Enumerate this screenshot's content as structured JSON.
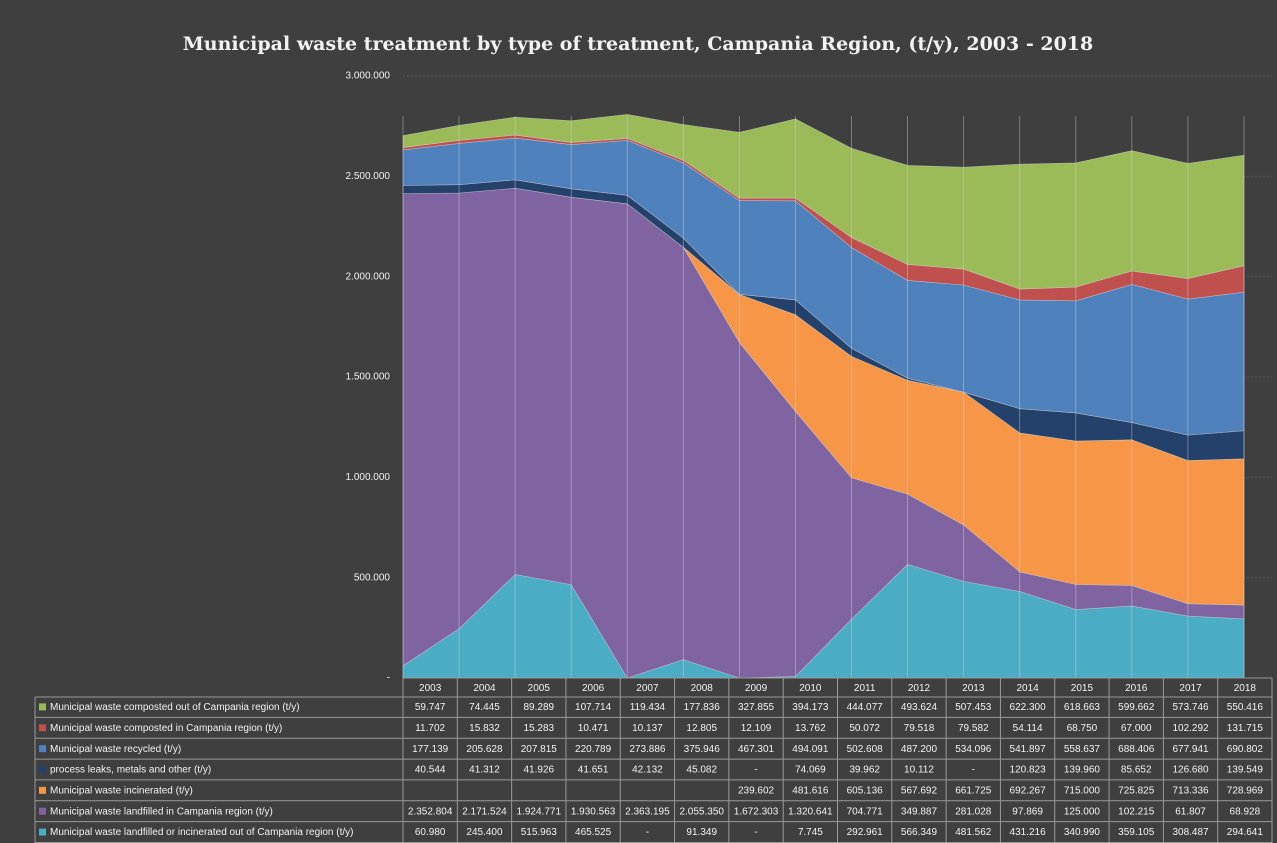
{
  "chart_data": {
    "type": "stacked_area",
    "title": "Municipal waste treatment by type of treatment, Campania Region, (t/y), 2003 - 2018",
    "categories": [
      "2003",
      "2004",
      "2005",
      "2006",
      "2007",
      "2008",
      "2009",
      "2010",
      "2011",
      "2012",
      "2013",
      "2014",
      "2015",
      "2016",
      "2017",
      "2018"
    ],
    "ylim": [
      0,
      3000000
    ],
    "yticks": [
      {
        "value": 0,
        "label": "-"
      },
      {
        "value": 500000,
        "label": "500.000"
      },
      {
        "value": 1000000,
        "label": "1.000.000"
      },
      {
        "value": 1500000,
        "label": "1.500.000"
      },
      {
        "value": 2000000,
        "label": "2.000.000"
      },
      {
        "value": 2500000,
        "label": "2.500.000"
      },
      {
        "value": 3000000,
        "label": "3.000.000"
      }
    ],
    "grid": true,
    "series": [
      {
        "name": "Municipal waste composted out of Campania region (t/y)",
        "color": "#9bbb59",
        "values": [
          59747,
          74445,
          89289,
          107714,
          119434,
          177836,
          327855,
          394173,
          444077,
          493624,
          507453,
          622300,
          618663,
          599662,
          573746,
          550416
        ],
        "value_labels": [
          "59.747",
          "74.445",
          "89.289",
          "107.714",
          "119.434",
          "177.836",
          "327.855",
          "394.173",
          "444.077",
          "493.624",
          "507.453",
          "622.300",
          "618.663",
          "599.662",
          "573.746",
          "550.416"
        ]
      },
      {
        "name": "Municipal waste composted in Campania region (t/y)",
        "color": "#c0504d",
        "values": [
          11702,
          15832,
          15283,
          10471,
          10137,
          12805,
          12109,
          13762,
          50072,
          79518,
          79582,
          54114,
          68750,
          67000,
          102292,
          131715
        ],
        "value_labels": [
          "11.702",
          "15.832",
          "15.283",
          "10.471",
          "10.137",
          "12.805",
          "12.109",
          "13.762",
          "50.072",
          "79.518",
          "79.582",
          "54.114",
          "68.750",
          "67.000",
          "102.292",
          "131.715"
        ]
      },
      {
        "name": "Municipal waste recycled (t/y)",
        "color": "#4f81bd",
        "values": [
          177139,
          205628,
          207815,
          220789,
          273886,
          375946,
          467301,
          494091,
          502608,
          487200,
          534096,
          541897,
          558637,
          688406,
          677941,
          690802
        ],
        "value_labels": [
          "177.139",
          "205.628",
          "207.815",
          "220.789",
          "273.886",
          "375.946",
          "467.301",
          "494.091",
          "502.608",
          "487.200",
          "534.096",
          "541.897",
          "558.637",
          "688.406",
          "677.941",
          "690.802"
        ]
      },
      {
        "name": "process leaks, metals and other (t/y)",
        "color": "#24416b",
        "values": [
          40544,
          41312,
          41926,
          41651,
          42132,
          45082,
          null,
          74069,
          39962,
          10112,
          null,
          120823,
          139960,
          85652,
          126680,
          139549
        ],
        "value_labels": [
          "40.544",
          "41.312",
          "41.926",
          "41.651",
          "42.132",
          "45.082",
          "-",
          "74.069",
          "39.962",
          "10.112",
          "-",
          "120.823",
          "139.960",
          "85.652",
          "126.680",
          "139.549"
        ]
      },
      {
        "name": "Municipal waste incinerated (t/y)",
        "color": "#f79646",
        "values": [
          null,
          null,
          null,
          null,
          null,
          null,
          239602,
          481616,
          605136,
          567692,
          661725,
          692267,
          715000,
          725825,
          713336,
          728969
        ],
        "value_labels": [
          null,
          null,
          null,
          null,
          null,
          null,
          "239.602",
          "481.616",
          "605.136",
          "567.692",
          "661.725",
          "692.267",
          "715.000",
          "725.825",
          "713.336",
          "728.969"
        ]
      },
      {
        "name": "Municipal waste landfilled in Campania region (t/y)",
        "color": "#8064a2",
        "values": [
          2352804,
          2171524,
          1924771,
          1930563,
          2363195,
          2055350,
          1672303,
          1320641,
          704771,
          349887,
          281028,
          97869,
          125000,
          102215,
          61807,
          68928
        ],
        "value_labels": [
          "2.352.804",
          "2.171.524",
          "1.924.771",
          "1.930.563",
          "2.363.195",
          "2.055.350",
          "1.672.303",
          "1.320.641",
          "704.771",
          "349.887",
          "281.028",
          "97.869",
          "125.000",
          "102.215",
          "61.807",
          "68.928"
        ]
      },
      {
        "name": "Municipal waste landfilled or incinerated out of Campania region (t/y)",
        "color": "#4bacc6",
        "values": [
          60980,
          245400,
          515963,
          465525,
          null,
          91349,
          null,
          7745,
          292961,
          566349,
          481562,
          431216,
          340990,
          359105,
          308487,
          294641
        ],
        "value_labels": [
          "60.980",
          "245.400",
          "515.963",
          "465.525",
          "-",
          "91.349",
          "-",
          "7.745",
          "292.961",
          "566.349",
          "481.562",
          "431.216",
          "340.990",
          "359.105",
          "308.487",
          "294.641"
        ]
      }
    ]
  }
}
